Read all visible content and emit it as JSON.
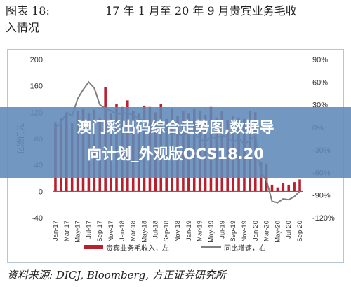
{
  "header": {
    "figure_label": "图表 18:",
    "title_line1": "17 年 1 月至 20 年 9 月贵宾业务毛收",
    "title_line2": "入情况"
  },
  "source": "资料来源: DICJ, Bloomberg, 方正证券研究所",
  "overlay": {
    "line1": "澳门彩出码综合走势图,数据导",
    "line2": "向计划_外观版OCS18.20"
  },
  "colors": {
    "bar": "#b8202e",
    "line": "#7f7f7f",
    "frame": "#b8c4d0"
  },
  "chart_data": {
    "type": "bar",
    "ylabel": "亿澳门元",
    "ylim": [
      -40,
      200
    ],
    "yticks": [
      -40,
      0,
      40,
      80,
      120,
      160,
      200
    ],
    "y2lim": [
      -120,
      90
    ],
    "y2ticks": [
      "90%",
      "60%",
      "30%",
      "0%",
      "-30%",
      "-60%",
      "-90%",
      "-120%"
    ],
    "y2tick_values": [
      90,
      60,
      30,
      0,
      -30,
      -60,
      -90,
      -120
    ],
    "xtick_labels": [
      "Jan-17",
      "Mar-17",
      "May-17",
      "Jul-17",
      "Sep-17",
      "Nov-17",
      "Jan-18",
      "Mar-18",
      "May-18",
      "Jul-18",
      "Sep-18",
      "Nov-18",
      "Jan-19",
      "Mar-19",
      "May-19",
      "Jul-19",
      "Sep-19",
      "Nov-19",
      "Jan-20",
      "Mar-20",
      "May-20",
      "Jul-20",
      "Sep-20"
    ],
    "legend": [
      "贵宾业务毛收入，左",
      "同比增速，右"
    ],
    "categories": [
      "Jan-17",
      "Feb-17",
      "Mar-17",
      "Apr-17",
      "May-17",
      "Jun-17",
      "Jul-17",
      "Aug-17",
      "Sep-17",
      "Oct-17",
      "Nov-17",
      "Dec-17",
      "Jan-18",
      "Feb-18",
      "Mar-18",
      "Apr-18",
      "May-18",
      "Jun-18",
      "Jul-18",
      "Aug-18",
      "Sep-18",
      "Oct-18",
      "Nov-18",
      "Dec-18",
      "Jan-19",
      "Feb-19",
      "Mar-19",
      "Apr-19",
      "May-19",
      "Jun-19",
      "Jul-19",
      "Aug-19",
      "Sep-19",
      "Oct-19",
      "Nov-19",
      "Dec-19",
      "Jan-20",
      "Feb-20",
      "Mar-20",
      "Apr-20",
      "May-20",
      "Jun-20",
      "Jul-20",
      "Aug-20",
      "Sep-20"
    ],
    "series": [
      {
        "name": "贵宾业务毛收入，左",
        "axis": "left",
        "values": [
          105,
          112,
          118,
          103,
          122,
          125,
          118,
          124,
          112,
          158,
          118,
          132,
          128,
          138,
          122,
          118,
          130,
          128,
          120,
          132,
          110,
          126,
          115,
          122,
          118,
          125,
          122,
          116,
          128,
          112,
          122,
          108,
          115,
          112,
          110,
          122,
          120,
          45,
          42,
          10,
          6,
          12,
          10,
          14,
          18
        ]
      },
      {
        "name": "同比增速，右",
        "axis": "right",
        "values": [
          0,
          5,
          20,
          15,
          38,
          50,
          60,
          52,
          30,
          25,
          22,
          18,
          18,
          20,
          15,
          12,
          8,
          6,
          2,
          0,
          -5,
          -10,
          -8,
          -12,
          -5,
          -8,
          -15,
          -20,
          -12,
          -15,
          -10,
          -14,
          -20,
          -15,
          -22,
          -18,
          -10,
          -60,
          -70,
          -98,
          -100,
          -95,
          -96,
          -92,
          -85
        ]
      }
    ]
  }
}
